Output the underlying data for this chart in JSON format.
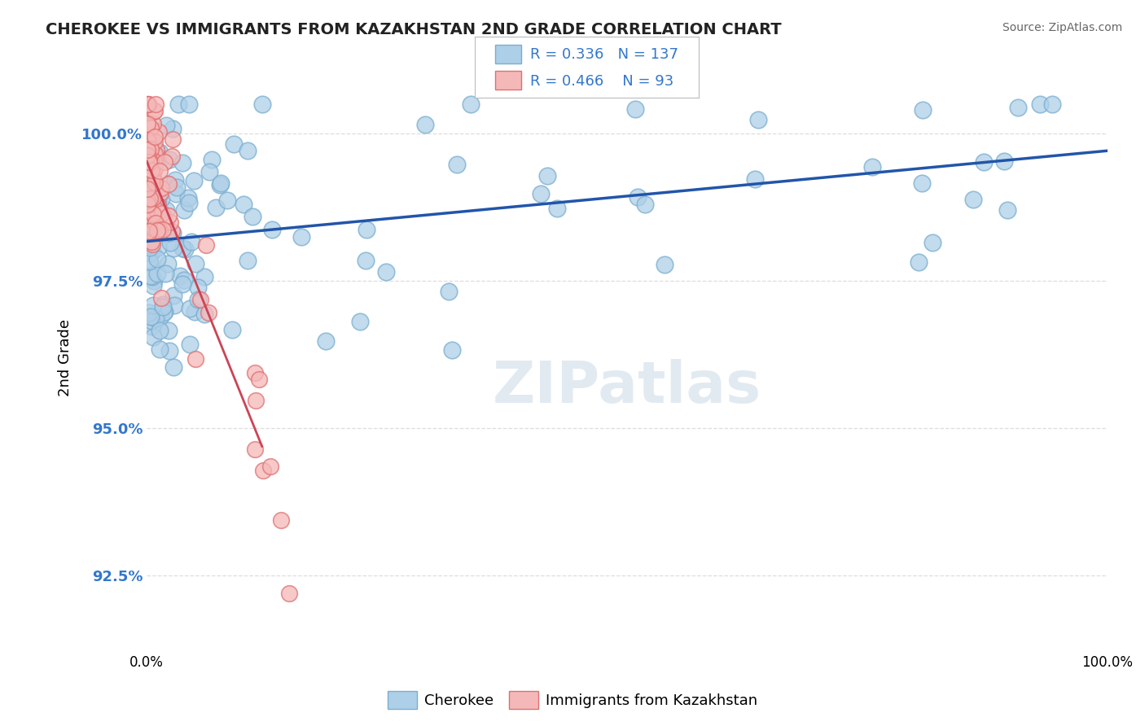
{
  "title": "CHEROKEE VS IMMIGRANTS FROM KAZAKHSTAN 2ND GRADE CORRELATION CHART",
  "source": "Source: ZipAtlas.com",
  "ylabel": "2nd Grade",
  "ytick_labels": [
    "92.5%",
    "95.0%",
    "97.5%",
    "100.0%"
  ],
  "ytick_values": [
    92.5,
    95.0,
    97.5,
    100.0
  ],
  "legend_blue_r": "0.336",
  "legend_blue_n": "137",
  "legend_pink_r": "0.466",
  "legend_pink_n": "93",
  "legend_blue_label": "Cherokee",
  "legend_pink_label": "Immigrants from Kazakhstan",
  "blue_color": "#aecfe8",
  "blue_edge_color": "#7aaed0",
  "pink_color": "#f5b8b8",
  "pink_edge_color": "#e07070",
  "trend_line_color": "#2255aa",
  "background_color": "#ffffff",
  "grid_color": "#dddddd",
  "xlim": [
    0.0,
    100.0
  ],
  "ylim": [
    91.2,
    101.2
  ]
}
